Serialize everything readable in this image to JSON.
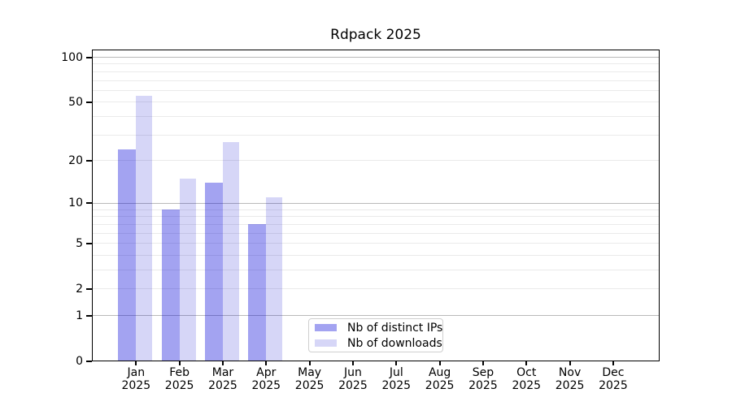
{
  "chart_data": {
    "type": "bar",
    "title": "Rdpack 2025",
    "x_categories": [
      {
        "label": "Jan",
        "sub": "2025"
      },
      {
        "label": "Feb",
        "sub": "2025"
      },
      {
        "label": "Mar",
        "sub": "2025"
      },
      {
        "label": "Apr",
        "sub": "2025"
      },
      {
        "label": "May",
        "sub": "2025"
      },
      {
        "label": "Jun",
        "sub": "2025"
      },
      {
        "label": "Jul",
        "sub": "2025"
      },
      {
        "label": "Aug",
        "sub": "2025"
      },
      {
        "label": "Sep",
        "sub": "2025"
      },
      {
        "label": "Oct",
        "sub": "2025"
      },
      {
        "label": "Nov",
        "sub": "2025"
      },
      {
        "label": "Dec",
        "sub": "2025"
      }
    ],
    "series": [
      {
        "name": "Nb of distinct IPs",
        "color": "rgba(0,0,215,0.36)",
        "values": [
          24,
          9,
          14,
          7,
          0,
          0,
          0,
          0,
          0,
          0,
          0,
          0
        ]
      },
      {
        "name": "Nb of downloads",
        "color": "rgba(0,0,205,0.16)",
        "values": [
          55,
          15,
          27,
          11,
          0,
          0,
          0,
          0,
          0,
          0,
          0,
          0
        ]
      }
    ],
    "yscale": "log1p",
    "ylim": [
      0,
      112
    ],
    "yticks": [
      0,
      1,
      2,
      5,
      10,
      20,
      50,
      100
    ],
    "grid": {
      "major_values": [
        1,
        10,
        100
      ],
      "minor_values": [
        2,
        3,
        4,
        5,
        6,
        7,
        8,
        9,
        20,
        30,
        40,
        50,
        60,
        70,
        80,
        90
      ],
      "major_color": "#b9b9b9",
      "minor_color": "#eaeaea"
    },
    "legend": {
      "position": "lower center",
      "border_color": "#cfcfcf",
      "background": "#ffffff"
    },
    "axis_color": "#000000"
  }
}
